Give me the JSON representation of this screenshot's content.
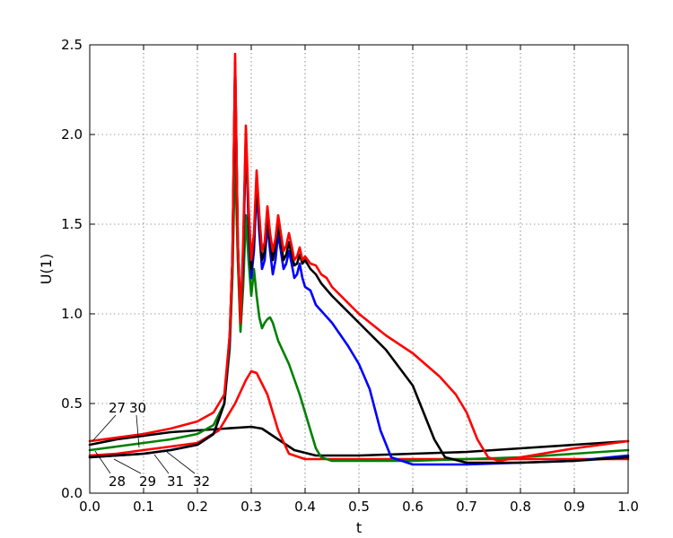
{
  "chart_data": {
    "type": "line",
    "title": "",
    "xlabel": "t",
    "ylabel": "U(1)",
    "xlim": [
      0.0,
      1.0
    ],
    "ylim": [
      0.0,
      2.5
    ],
    "grid": true,
    "xticks": [
      "0.0",
      "0.1",
      "0.2",
      "0.3",
      "0.4",
      "0.5",
      "0.6",
      "0.7",
      "0.8",
      "0.9",
      "1.0"
    ],
    "yticks": [
      "0.0",
      "0.5",
      "1.0",
      "1.5",
      "2.0",
      "2.5"
    ],
    "annotations": [
      "27",
      "30",
      "28",
      "29",
      "31",
      "32"
    ],
    "series": [
      {
        "color": "#000000",
        "x": [
          0,
          0.05,
          0.1,
          0.15,
          0.2,
          0.25,
          0.3,
          0.32,
          0.35,
          0.38,
          0.42,
          0.5,
          0.6,
          0.7,
          0.8,
          0.9,
          1.0
        ],
        "y": [
          0.27,
          0.3,
          0.32,
          0.34,
          0.35,
          0.36,
          0.37,
          0.36,
          0.3,
          0.24,
          0.21,
          0.21,
          0.22,
          0.23,
          0.25,
          0.27,
          0.29
        ]
      },
      {
        "color": "#ff0000",
        "x": [
          0,
          0.05,
          0.1,
          0.15,
          0.2,
          0.24,
          0.27,
          0.29,
          0.3,
          0.31,
          0.33,
          0.35,
          0.37,
          0.4,
          0.45,
          0.5,
          0.6,
          0.7,
          0.8,
          0.9,
          1.0
        ],
        "y": [
          0.21,
          0.22,
          0.24,
          0.26,
          0.28,
          0.35,
          0.5,
          0.63,
          0.68,
          0.67,
          0.55,
          0.35,
          0.22,
          0.19,
          0.19,
          0.19,
          0.19,
          0.19,
          0.19,
          0.19,
          0.19
        ]
      },
      {
        "color": "#008000",
        "x": [
          0,
          0.05,
          0.1,
          0.15,
          0.2,
          0.23,
          0.25,
          0.26,
          0.265,
          0.27,
          0.275,
          0.28,
          0.285,
          0.29,
          0.295,
          0.3,
          0.305,
          0.31,
          0.315,
          0.32,
          0.325,
          0.33,
          0.335,
          0.34,
          0.35,
          0.37,
          0.39,
          0.4,
          0.41,
          0.42,
          0.43,
          0.45,
          0.5,
          0.6,
          0.7,
          0.8,
          0.9,
          1.0
        ],
        "y": [
          0.24,
          0.26,
          0.28,
          0.3,
          0.33,
          0.38,
          0.5,
          0.8,
          1.2,
          1.9,
          1.3,
          0.9,
          1.15,
          1.55,
          1.3,
          1.1,
          1.25,
          1.1,
          0.98,
          0.92,
          0.95,
          0.97,
          0.98,
          0.95,
          0.85,
          0.72,
          0.55,
          0.45,
          0.35,
          0.25,
          0.2,
          0.18,
          0.18,
          0.18,
          0.19,
          0.2,
          0.22,
          0.24
        ]
      },
      {
        "color": "#0000ff",
        "x": [
          0,
          0.05,
          0.1,
          0.15,
          0.2,
          0.23,
          0.25,
          0.26,
          0.265,
          0.27,
          0.275,
          0.28,
          0.285,
          0.29,
          0.295,
          0.3,
          0.305,
          0.31,
          0.315,
          0.32,
          0.325,
          0.33,
          0.335,
          0.34,
          0.345,
          0.35,
          0.355,
          0.36,
          0.365,
          0.37,
          0.375,
          0.38,
          0.385,
          0.39,
          0.395,
          0.4,
          0.41,
          0.42,
          0.45,
          0.48,
          0.5,
          0.52,
          0.54,
          0.56,
          0.6,
          0.7,
          0.8,
          0.9,
          1.0
        ],
        "y": [
          0.2,
          0.21,
          0.22,
          0.24,
          0.27,
          0.33,
          0.5,
          0.85,
          1.3,
          2.4,
          1.4,
          0.95,
          1.3,
          2.0,
          1.5,
          1.2,
          1.35,
          1.7,
          1.45,
          1.25,
          1.3,
          1.5,
          1.35,
          1.22,
          1.3,
          1.45,
          1.35,
          1.25,
          1.28,
          1.35,
          1.28,
          1.2,
          1.22,
          1.28,
          1.2,
          1.15,
          1.13,
          1.05,
          0.95,
          0.82,
          0.72,
          0.58,
          0.35,
          0.2,
          0.16,
          0.16,
          0.17,
          0.18,
          0.21
        ]
      },
      {
        "color": "#000000",
        "x": [
          0,
          0.05,
          0.1,
          0.15,
          0.2,
          0.23,
          0.25,
          0.26,
          0.265,
          0.27,
          0.275,
          0.28,
          0.285,
          0.29,
          0.295,
          0.3,
          0.305,
          0.31,
          0.315,
          0.32,
          0.325,
          0.33,
          0.335,
          0.34,
          0.345,
          0.35,
          0.355,
          0.36,
          0.365,
          0.37,
          0.375,
          0.38,
          0.385,
          0.39,
          0.395,
          0.4,
          0.41,
          0.42,
          0.43,
          0.45,
          0.5,
          0.55,
          0.6,
          0.62,
          0.64,
          0.66,
          0.7,
          0.8,
          0.9,
          1.0
        ],
        "y": [
          0.2,
          0.21,
          0.22,
          0.24,
          0.27,
          0.33,
          0.5,
          0.88,
          1.3,
          2.4,
          1.4,
          0.95,
          1.35,
          2.0,
          1.55,
          1.25,
          1.4,
          1.75,
          1.5,
          1.3,
          1.35,
          1.55,
          1.4,
          1.3,
          1.38,
          1.5,
          1.4,
          1.3,
          1.33,
          1.4,
          1.33,
          1.27,
          1.28,
          1.33,
          1.28,
          1.3,
          1.25,
          1.22,
          1.17,
          1.1,
          0.95,
          0.8,
          0.6,
          0.45,
          0.3,
          0.2,
          0.17,
          0.17,
          0.18,
          0.2
        ]
      },
      {
        "color": "#ff0000",
        "x": [
          0,
          0.05,
          0.1,
          0.15,
          0.2,
          0.23,
          0.25,
          0.26,
          0.265,
          0.27,
          0.275,
          0.28,
          0.285,
          0.29,
          0.295,
          0.3,
          0.305,
          0.31,
          0.315,
          0.32,
          0.325,
          0.33,
          0.335,
          0.34,
          0.345,
          0.35,
          0.355,
          0.36,
          0.365,
          0.37,
          0.375,
          0.38,
          0.385,
          0.39,
          0.395,
          0.4,
          0.41,
          0.42,
          0.43,
          0.44,
          0.45,
          0.5,
          0.55,
          0.6,
          0.65,
          0.68,
          0.7,
          0.72,
          0.74,
          0.76,
          0.8,
          0.9,
          1.0
        ],
        "y": [
          0.29,
          0.31,
          0.33,
          0.36,
          0.4,
          0.45,
          0.55,
          0.88,
          1.3,
          2.45,
          1.4,
          0.95,
          1.4,
          2.05,
          1.6,
          1.3,
          1.45,
          1.8,
          1.55,
          1.35,
          1.4,
          1.6,
          1.45,
          1.35,
          1.42,
          1.55,
          1.45,
          1.35,
          1.38,
          1.45,
          1.38,
          1.3,
          1.32,
          1.37,
          1.3,
          1.32,
          1.28,
          1.27,
          1.22,
          1.2,
          1.15,
          1.0,
          0.88,
          0.78,
          0.65,
          0.55,
          0.45,
          0.3,
          0.2,
          0.18,
          0.2,
          0.25,
          0.29
        ]
      }
    ]
  }
}
